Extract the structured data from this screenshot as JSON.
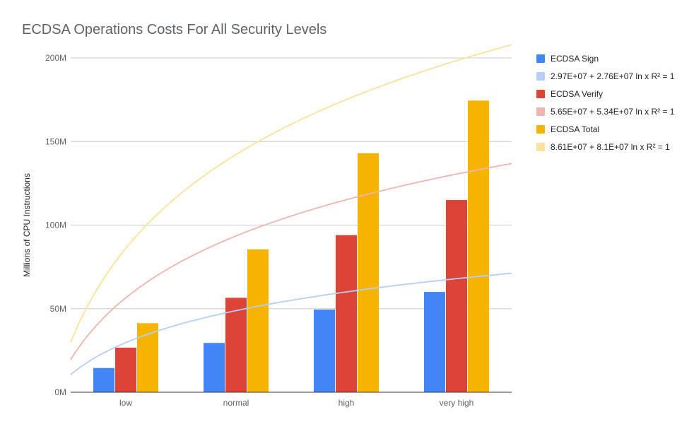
{
  "chart_data": {
    "type": "bar",
    "title": "ECDSA Operations Costs For All Security Levels",
    "xlabel": "",
    "ylabel": "Millions of CPU Instructions",
    "categories": [
      "low",
      "normal",
      "high",
      "very high"
    ],
    "ylim": [
      0,
      200000000
    ],
    "yticks": [
      0,
      50000000,
      100000000,
      150000000,
      200000000
    ],
    "ytick_labels": [
      "0M",
      "50M",
      "100M",
      "150M",
      "200M"
    ],
    "grid": true,
    "legend_position": "right",
    "series": [
      {
        "name": "ECDSA Sign",
        "color": "#4285f4",
        "values": [
          14500000,
          29500000,
          49500000,
          60000000
        ]
      },
      {
        "name": "ECDSA Verify",
        "color": "#db4437",
        "values": [
          26700000,
          56500000,
          94000000,
          115000000
        ]
      },
      {
        "name": "ECDSA Total",
        "color": "#f4b400",
        "values": [
          41300000,
          85500000,
          143000000,
          174500000
        ]
      }
    ],
    "trendlines": [
      {
        "name": "2.97E+07 + 2.76E+07 ln x R² = 1",
        "color": "#b6cff9",
        "intercept": 29700000,
        "slope": 27600000
      },
      {
        "name": "5.65E+07 + 5.34E+07 ln x R² = 1",
        "color": "#f1b4af",
        "intercept": 56500000,
        "slope": 53400000
      },
      {
        "name": "8.61E+07 + 8.1E+07 ln x R² = 1",
        "color": "#fbe29c",
        "intercept": 86100000,
        "slope": 81000000
      }
    ],
    "legend": [
      {
        "label": "ECDSA Sign",
        "color": "#4285f4"
      },
      {
        "label": "2.97E+07 + 2.76E+07 ln x R² = 1",
        "color": "#b6cff9"
      },
      {
        "label": "ECDSA Verify",
        "color": "#db4437"
      },
      {
        "label": "5.65E+07 + 5.34E+07 ln x R² = 1",
        "color": "#f1b4af"
      },
      {
        "label": "ECDSA Total",
        "color": "#f4b400"
      },
      {
        "label": "8.61E+07 + 8.1E+07 ln x R² = 1",
        "color": "#fbe29c"
      }
    ]
  }
}
